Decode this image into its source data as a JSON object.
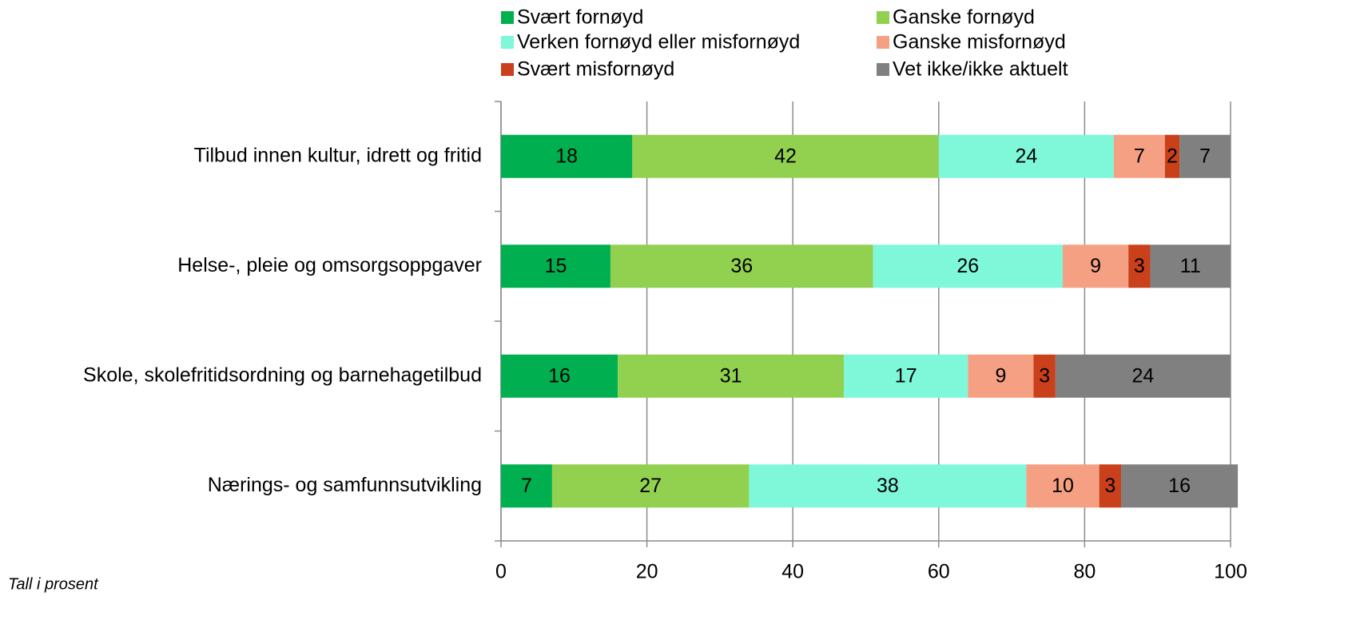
{
  "chart_data": {
    "type": "stacked_bar_horizontal",
    "categories": [
      "Tilbud innen kultur, idrett og fritid",
      "Helse-, pleie og omsorgsoppgaver",
      "Skole, skolefritidsordning og barnehagetilbud",
      "Nærings- og samfunnsutvikling"
    ],
    "series": [
      {
        "name": "Svært fornøyd",
        "color": "#00b050",
        "values": [
          18,
          15,
          16,
          7
        ]
      },
      {
        "name": "Ganske fornøyd",
        "color": "#92d050",
        "values": [
          42,
          36,
          31,
          27
        ]
      },
      {
        "name": "Verken fornøyd eller misfornøyd",
        "color": "#7ff7d9",
        "values": [
          24,
          26,
          17,
          38
        ]
      },
      {
        "name": "Ganske misfornøyd",
        "color": "#f5a083",
        "values": [
          7,
          9,
          9,
          10
        ]
      },
      {
        "name": "Svært misfornøyd",
        "color": "#c9401b",
        "values": [
          2,
          3,
          3,
          3
        ]
      },
      {
        "name": "Vet ikke/ikke aktuelt",
        "color": "#808080",
        "values": [
          7,
          11,
          24,
          16
        ]
      }
    ],
    "xlim": [
      0,
      100
    ],
    "xticks": [
      0,
      20,
      40,
      60,
      80,
      100
    ],
    "grid": true,
    "legend": "top",
    "note": "Tall i prosent"
  }
}
